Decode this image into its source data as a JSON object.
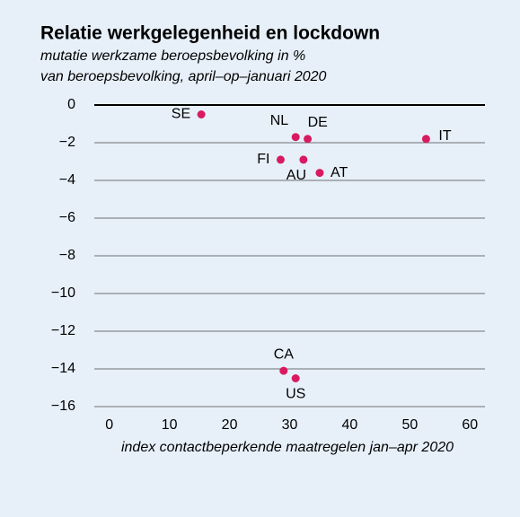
{
  "chart_data": {
    "type": "scatter",
    "title": "Relatie werkgelegenheid en lockdown",
    "subtitle": [
      "mutatie werkzame beroepsbevolking in %",
      "van beroepsbevolking, april–op–januari 2020"
    ],
    "x_label": "index contactbeperkende maatregelen jan–apr 2020",
    "color": "#d81b60",
    "points": [
      "SE",
      "NL",
      "DE",
      "IT",
      "FI",
      "AU",
      "AT",
      "CA",
      "US"
    ],
    "x": [
      15.3,
      31,
      33,
      52.7,
      28.5,
      32.3,
      35,
      29,
      31
    ],
    "y": [
      -0.5,
      -1.7,
      -1.8,
      -1.8,
      -2.9,
      -2.9,
      -3.6,
      -14.1,
      -14.5
    ],
    "xlim": [
      -2.5,
      62.5
    ],
    "ylim": [
      -16,
      0
    ],
    "xticks": [
      0,
      10,
      20,
      30,
      40,
      50,
      60
    ],
    "yticks": [
      0,
      {
        "value": -2,
        "label": "−2"
      },
      {
        "value": -4,
        "label": "−4"
      },
      {
        "value": -6,
        "label": "−6"
      },
      {
        "value": -8,
        "label": "−8"
      },
      {
        "value": -10,
        "label": "−10"
      },
      {
        "value": -12,
        "label": "−12"
      },
      {
        "value": -14,
        "label": "−14"
      },
      {
        "value": -16,
        "label": "−16"
      }
    ],
    "grid": true
  }
}
